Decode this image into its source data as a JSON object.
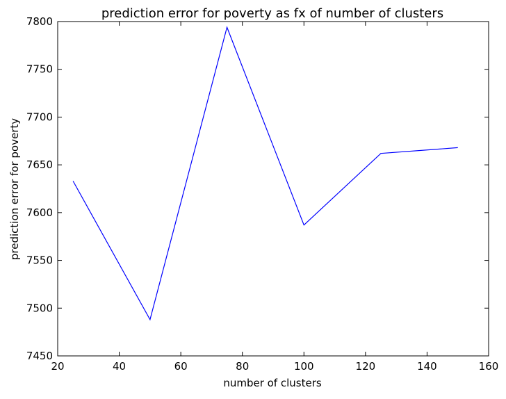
{
  "chart_data": {
    "type": "line",
    "title": "prediction error for poverty as fx of number of clusters",
    "xlabel": "number of clusters",
    "ylabel": "prediction error for poverty",
    "xlim": [
      20,
      160
    ],
    "ylim": [
      7450,
      7800
    ],
    "xticks": [
      20,
      40,
      60,
      80,
      100,
      120,
      140,
      160
    ],
    "yticks": [
      7450,
      7500,
      7550,
      7600,
      7650,
      7700,
      7750,
      7800
    ],
    "grid": false,
    "series": [
      {
        "x": [
          25,
          50,
          75,
          100,
          125,
          150
        ],
        "y": [
          7633,
          7488,
          7794,
          7587,
          7662,
          7668
        ],
        "color": "#0000ff"
      }
    ]
  }
}
